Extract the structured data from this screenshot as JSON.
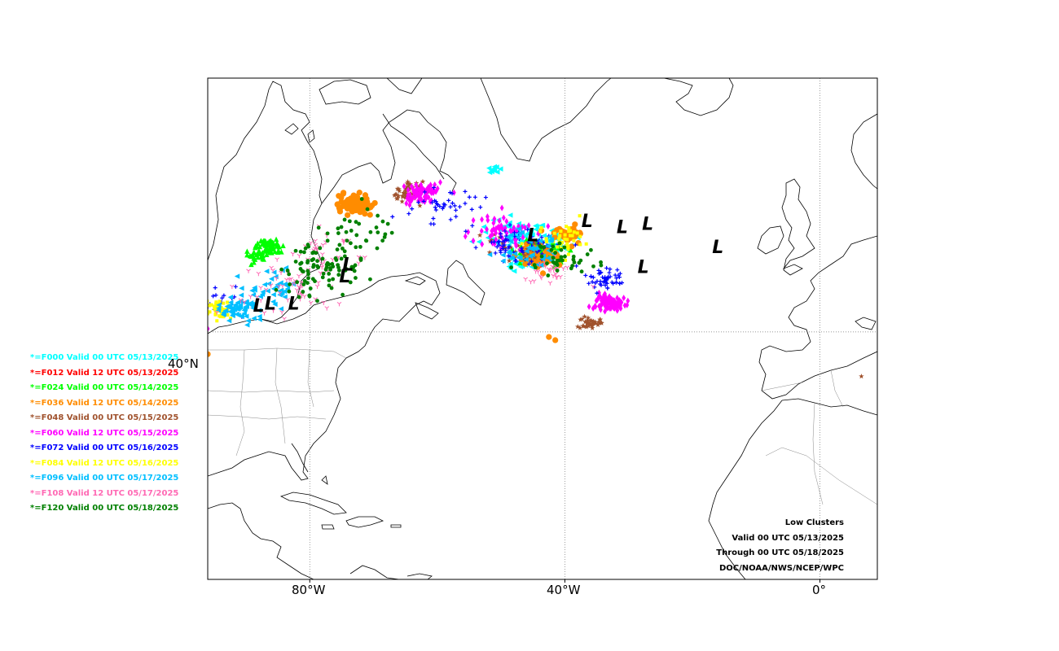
{
  "map": {
    "lon_range": [
      -96,
      9
    ],
    "lat_range": [
      1,
      80
    ],
    "gridlines": {
      "lons": [
        -80,
        -40,
        0
      ],
      "lats": [
        40
      ]
    },
    "x_tick_labels": [
      "80°W",
      "40°W",
      "0°"
    ],
    "y_tick_labels": [
      "40°N"
    ],
    "low_markers": [
      {
        "label": "L",
        "lon": -88,
        "lat": 43.2
      },
      {
        "label": "L",
        "lon": -86.2,
        "lat": 43.5
      },
      {
        "label": "L",
        "lon": -82.5,
        "lat": 43.5
      },
      {
        "label": "L",
        "lon": -74,
        "lat": 49.7
      },
      {
        "label": "L",
        "lon": -74.5,
        "lat": 47.8
      },
      {
        "label": "L",
        "lon": -45,
        "lat": 54.3
      },
      {
        "label": "L",
        "lon": -36.5,
        "lat": 56.5
      },
      {
        "label": "L",
        "lon": -31,
        "lat": 55.6
      },
      {
        "label": "L",
        "lon": -27,
        "lat": 56.1
      },
      {
        "label": "L",
        "lon": -27.7,
        "lat": 49.3
      },
      {
        "label": "L",
        "lon": -16,
        "lat": 52.4
      }
    ]
  },
  "legend": [
    {
      "label": "*=F000 Valid 00 UTC 05/13/2025",
      "color": "#00ffff",
      "icon": "triangle-left-icon"
    },
    {
      "label": "*=F012 Valid 12 UTC 05/13/2025",
      "color": "#ff0000",
      "icon": "circle-icon"
    },
    {
      "label": "*=F024 Valid 00 UTC 05/14/2025",
      "color": "#00ff00",
      "icon": "triangle-up-icon"
    },
    {
      "label": "*=F036 Valid 12 UTC 05/14/2025",
      "color": "#ff8c00",
      "icon": "octagon-icon"
    },
    {
      "label": "*=F048 Valid 00 UTC 05/15/2025",
      "color": "#a0522d",
      "icon": "star-icon"
    },
    {
      "label": "*=F060 Valid 12 UTC 05/15/2025",
      "color": "#ff00ff",
      "icon": "diamond-icon"
    },
    {
      "label": "*=F072 Valid 00 UTC 05/16/2025",
      "color": "#0000ff",
      "icon": "plus-icon"
    },
    {
      "label": "*=F084 Valid 12 UTC 05/16/2025",
      "color": "#ffff00",
      "icon": "square-icon"
    },
    {
      "label": "*=F096 Valid 00 UTC 05/17/2025",
      "color": "#00bfff",
      "icon": "triangle-left-icon"
    },
    {
      "label": "*=F108 Valid 12 UTC 05/17/2025",
      "color": "#ff69b4",
      "icon": "tri-down-icon"
    },
    {
      "label": "*=F120 Valid 00 UTC 05/18/2025",
      "color": "#008000",
      "icon": "pentagon-icon"
    }
  ],
  "info": {
    "title": "Low Clusters",
    "valid": "Valid 00 UTC 05/13/2025",
    "through": "Through 00 UTC 05/18/2025",
    "source": "DOC/NOAA/NWS/NCEP/WPC"
  },
  "clusters": [
    {
      "series": 0,
      "lon": -48,
      "lat": 55.5,
      "spread": 2.5,
      "n": 60
    },
    {
      "series": 0,
      "lon": -43,
      "lat": 54.3,
      "spread": 2.0,
      "n": 40
    },
    {
      "series": 0,
      "lon": -47,
      "lat": 50.8,
      "spread": 0.8,
      "n": 20
    },
    {
      "series": 0,
      "lon": -51,
      "lat": 65.5,
      "spread": 0.6,
      "n": 10
    },
    {
      "series": 1,
      "lon": -44.5,
      "lat": 51.7,
      "spread": 1.0,
      "n": 15
    },
    {
      "series": 2,
      "lon": -86.5,
      "lat": 53.5,
      "spread": 1.2,
      "n": 60
    },
    {
      "series": 2,
      "lon": -88.5,
      "lat": 52.0,
      "spread": 0.8,
      "n": 20
    },
    {
      "series": 2,
      "lon": -44,
      "lat": 52.5,
      "spread": 1.8,
      "n": 60
    },
    {
      "series": 3,
      "lon": -73,
      "lat": 60.0,
      "spread": 1.5,
      "n": 80
    },
    {
      "series": 3,
      "lon": -44.5,
      "lat": 52.0,
      "spread": 1.5,
      "n": 60
    },
    {
      "series": 3,
      "lon": -39.5,
      "lat": 55.5,
      "spread": 1.2,
      "n": 40
    },
    {
      "series": 4,
      "lon": -64.5,
      "lat": 62.0,
      "spread": 1.2,
      "n": 60
    },
    {
      "series": 4,
      "lon": -48,
      "lat": 53.5,
      "spread": 2.5,
      "n": 30
    },
    {
      "series": 4,
      "lon": -36,
      "lat": 41.5,
      "spread": 0.8,
      "n": 40
    },
    {
      "series": 5,
      "lon": -62.5,
      "lat": 62.0,
      "spread": 1.6,
      "n": 70
    },
    {
      "series": 5,
      "lon": -50,
      "lat": 55.5,
      "spread": 2.5,
      "n": 60
    },
    {
      "series": 5,
      "lon": -33,
      "lat": 44.5,
      "spread": 1.2,
      "n": 90
    },
    {
      "series": 6,
      "lon": -59,
      "lat": 60.0,
      "spread": 3.0,
      "n": 40
    },
    {
      "series": 6,
      "lon": -47,
      "lat": 53.5,
      "spread": 3.0,
      "n": 70
    },
    {
      "series": 6,
      "lon": -34,
      "lat": 48.5,
      "spread": 1.5,
      "n": 50
    },
    {
      "series": 6,
      "lon": -94,
      "lat": 45.0,
      "spread": 2.0,
      "n": 20
    },
    {
      "series": 7,
      "lon": -94,
      "lat": 43.5,
      "spread": 1.2,
      "n": 50
    },
    {
      "series": 7,
      "lon": -40,
      "lat": 54.0,
      "spread": 2.5,
      "n": 40
    },
    {
      "series": 8,
      "lon": -91,
      "lat": 43.5,
      "spread": 1.5,
      "n": 60
    },
    {
      "series": 8,
      "lon": -86,
      "lat": 47.0,
      "spread": 2.5,
      "n": 40
    },
    {
      "series": 8,
      "lon": -46,
      "lat": 53.0,
      "spread": 2.5,
      "n": 40
    },
    {
      "series": 9,
      "lon": -84,
      "lat": 47.5,
      "spread": 4.0,
      "n": 60
    },
    {
      "series": 9,
      "lon": -77,
      "lat": 53.0,
      "spread": 3.0,
      "n": 30
    },
    {
      "series": 9,
      "lon": -42,
      "lat": 50.0,
      "spread": 2.5,
      "n": 30
    },
    {
      "series": 10,
      "lon": -78,
      "lat": 50.0,
      "spread": 3.5,
      "n": 90
    },
    {
      "series": 10,
      "lon": -72,
      "lat": 56.0,
      "spread": 3.0,
      "n": 30
    },
    {
      "series": 10,
      "lon": -41,
      "lat": 51.5,
      "spread": 2.5,
      "n": 40
    }
  ],
  "isolated_points": [
    {
      "series": 3,
      "lon": -42.5,
      "lat": 39.2
    },
    {
      "series": 3,
      "lon": -41.5,
      "lat": 38.7
    },
    {
      "series": 3,
      "lon": -96,
      "lat": 36.5
    },
    {
      "series": 4,
      "lon": 6.5,
      "lat": 33.0
    },
    {
      "series": 5,
      "lon": -96,
      "lat": 40.5
    }
  ]
}
